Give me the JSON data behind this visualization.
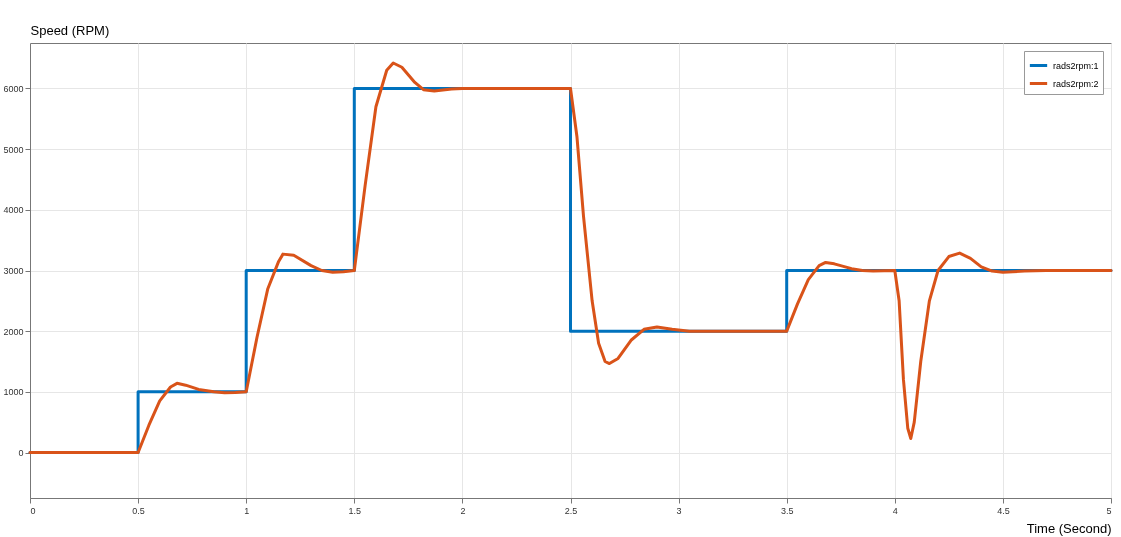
{
  "chart_data": {
    "type": "line",
    "xlabel": "Time (Second)",
    "ylabel": "Speed (RPM)",
    "xlim": [
      0,
      5
    ],
    "xticks": [
      0,
      0.5,
      1,
      1.5,
      2,
      2.5,
      3,
      3.5,
      4,
      4.5,
      5
    ],
    "ylim": [
      -750,
      6750
    ],
    "yticks": [
      0,
      1000,
      2000,
      3000,
      4000,
      5000,
      6000
    ],
    "grid": true,
    "legend": "top right",
    "marker": "none",
    "line_style": "solid",
    "series": [
      {
        "name": "rads2rpm:1",
        "color": "#0072bd",
        "x": [
          0,
          0.5,
          0.5,
          1,
          1,
          1.5,
          1.5,
          2.5,
          2.5,
          3.5,
          3.5,
          5
        ],
        "values": [
          0,
          0,
          1000,
          1000,
          3000,
          3000,
          6000,
          6000,
          2000,
          2000,
          3000,
          3000
        ]
      },
      {
        "name": "rads2rpm:2",
        "color": "#d95319",
        "x": [
          0,
          0.5,
          0.55,
          0.6,
          0.65,
          0.68,
          0.72,
          0.78,
          0.85,
          0.9,
          0.95,
          1,
          1.05,
          1.1,
          1.15,
          1.17,
          1.22,
          1.3,
          1.35,
          1.4,
          1.45,
          1.5,
          1.55,
          1.6,
          1.65,
          1.68,
          1.72,
          1.78,
          1.82,
          1.87,
          1.95,
          2,
          2.5,
          2.53,
          2.56,
          2.6,
          2.63,
          2.66,
          2.68,
          2.72,
          2.78,
          2.84,
          2.9,
          2.97,
          3.05,
          3.5,
          3.55,
          3.6,
          3.65,
          3.68,
          3.72,
          3.8,
          3.85,
          3.9,
          4,
          4.02,
          4.04,
          4.06,
          4.074,
          4.09,
          4.12,
          4.16,
          4.2,
          4.25,
          4.3,
          4.35,
          4.4,
          4.45,
          4.5,
          4.6,
          4.7,
          5
        ],
        "values": [
          0,
          0,
          450,
          850,
          1080,
          1140,
          1110,
          1040,
          1000,
          985,
          990,
          1000,
          1900,
          2700,
          3150,
          3270,
          3250,
          3080,
          3000,
          2970,
          2980,
          3000,
          4400,
          5700,
          6300,
          6420,
          6350,
          6100,
          5980,
          5960,
          5990,
          6000,
          6000,
          5200,
          3900,
          2500,
          1800,
          1500,
          1466,
          1550,
          1850,
          2030,
          2070,
          2030,
          2000,
          2000,
          2450,
          2850,
          3080,
          3133,
          3110,
          3030,
          3000,
          2990,
          3000,
          2500,
          1200,
          400,
          231,
          500,
          1500,
          2500,
          3000,
          3230,
          3287,
          3200,
          3060,
          2990,
          2970,
          2990,
          3000,
          3000
        ]
      }
    ]
  }
}
